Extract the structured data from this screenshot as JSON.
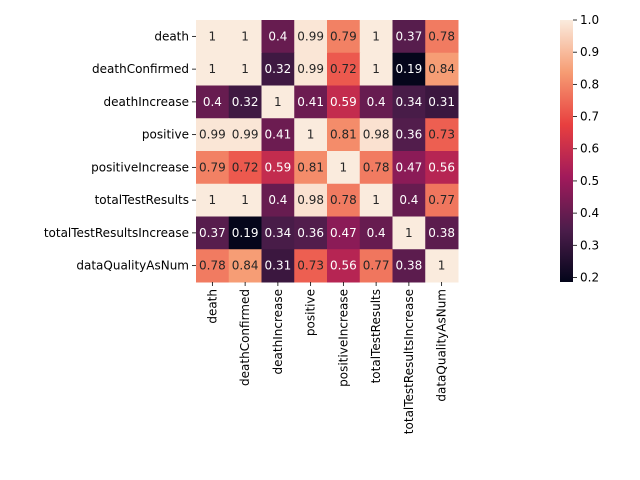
{
  "chart_data": {
    "type": "heatmap",
    "title": "",
    "xlabel": "",
    "ylabel": "",
    "labels": [
      "death",
      "deathConfirmed",
      "deathIncrease",
      "positive",
      "positiveIncrease",
      "totalTestResults",
      "totalTestResultsIncrease",
      "dataQualityAsNum"
    ],
    "values": [
      [
        1,
        1,
        0.4,
        0.99,
        0.79,
        1,
        0.37,
        0.78
      ],
      [
        1,
        1,
        0.32,
        0.99,
        0.72,
        1,
        0.19,
        0.84
      ],
      [
        0.4,
        0.32,
        1,
        0.41,
        0.59,
        0.4,
        0.34,
        0.31
      ],
      [
        0.99,
        0.99,
        0.41,
        1,
        0.81,
        0.98,
        0.36,
        0.73
      ],
      [
        0.79,
        0.72,
        0.59,
        0.81,
        1,
        0.78,
        0.47,
        0.56
      ],
      [
        1,
        1,
        0.4,
        0.98,
        0.78,
        1,
        0.4,
        0.77
      ],
      [
        0.37,
        0.19,
        0.34,
        0.36,
        0.47,
        0.4,
        1,
        0.38
      ],
      [
        0.78,
        0.84,
        0.31,
        0.73,
        0.56,
        0.77,
        0.38,
        1
      ]
    ],
    "colorbar": {
      "range": [
        0.186,
        1.0
      ],
      "ticks": [
        "0.2",
        "0.3",
        "0.4",
        "0.5",
        "0.6",
        "0.7",
        "0.8",
        "0.9",
        "1.0"
      ]
    },
    "colormap": "rocket",
    "colormap_stops": [
      "#03051a",
      "#4c1d4b",
      "#a11a5b",
      "#e83f3f",
      "#f69c73",
      "#faebdd"
    ]
  }
}
